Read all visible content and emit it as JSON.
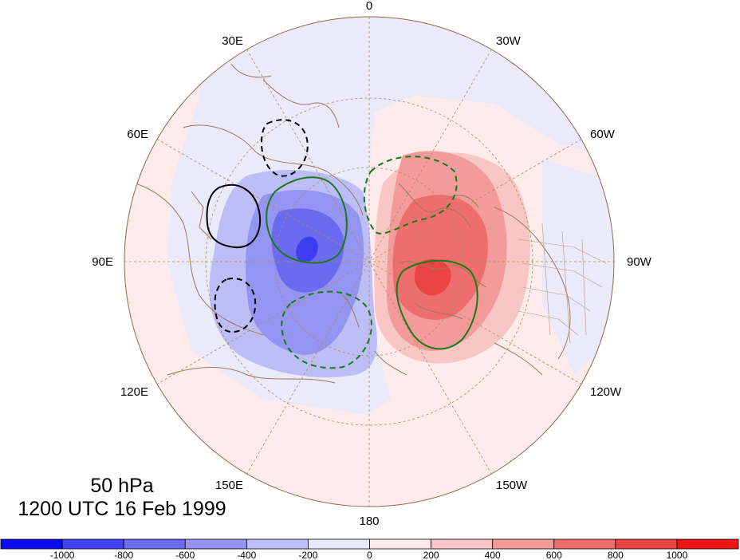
{
  "title": {
    "level": "50 hPa",
    "time": "1200 UTC 16 Feb 1999"
  },
  "longitude_labels": [
    {
      "id": "lon-0",
      "text": "0"
    },
    {
      "id": "lon-30w",
      "text": "30W"
    },
    {
      "id": "lon-60w",
      "text": "60W"
    },
    {
      "id": "lon-90w",
      "text": "90W"
    },
    {
      "id": "lon-120w",
      "text": "120W"
    },
    {
      "id": "lon-150w",
      "text": "150W"
    },
    {
      "id": "lon-180",
      "text": "180"
    },
    {
      "id": "lon-150e",
      "text": "150E"
    },
    {
      "id": "lon-120e",
      "text": "120E"
    },
    {
      "id": "lon-90e",
      "text": "90E"
    },
    {
      "id": "lon-60e",
      "text": "60E"
    },
    {
      "id": "lon-30e",
      "text": "30E"
    }
  ],
  "colorbar": {
    "colors": [
      "#0c0cf2",
      "#4242f0",
      "#6b6bf0",
      "#9494f2",
      "#bdbdf7",
      "#e8e8fb",
      "#fdeceb",
      "#f9c6c6",
      "#f39a9a",
      "#ee6e6e",
      "#ea4444",
      "#f01414"
    ],
    "labels": [
      "-1000",
      "-800",
      "-600",
      "-400",
      "-200",
      "0",
      "200",
      "400",
      "600",
      "800",
      "1000"
    ]
  },
  "colors": {
    "coastline": "#9a7a5a",
    "grid": "#b08a5a",
    "contour_black": "#000000",
    "contour_green": "#1a7a1a"
  }
}
